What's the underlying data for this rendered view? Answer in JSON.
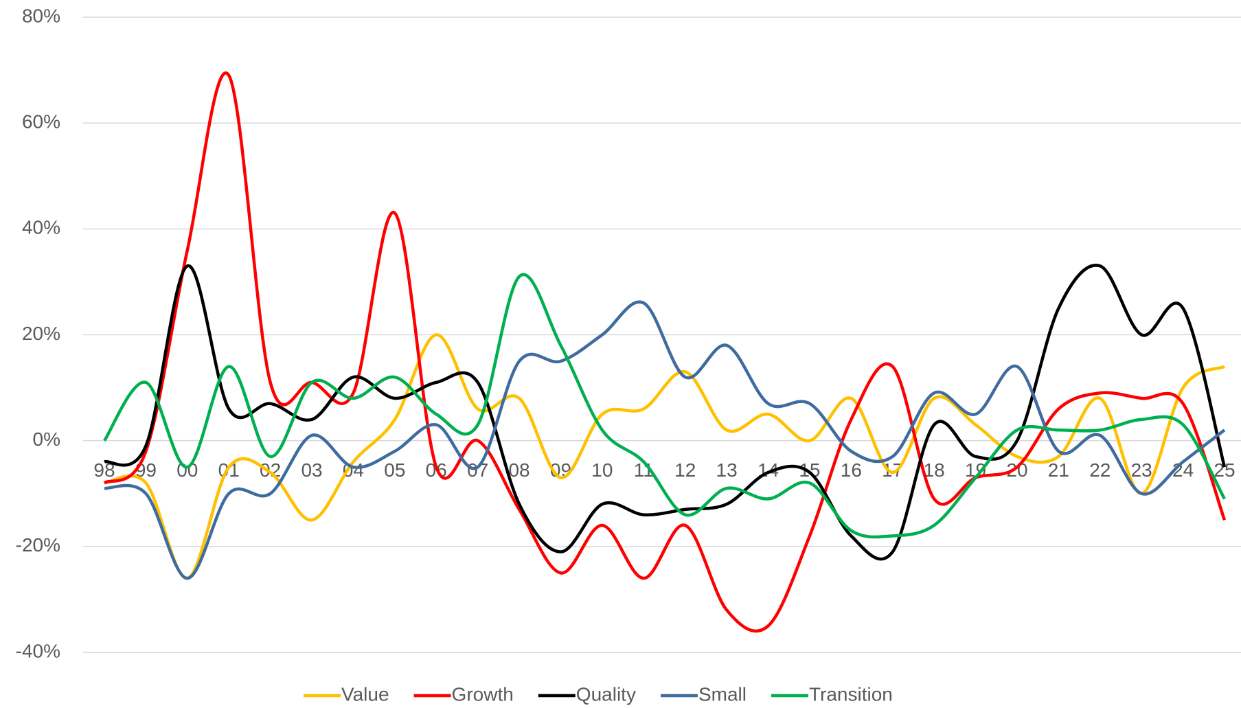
{
  "chart_data": {
    "type": "line",
    "categories": [
      "98",
      "99",
      "00",
      "01",
      "02",
      "03",
      "04",
      "05",
      "06",
      "07",
      "08",
      "09",
      "10",
      "11",
      "12",
      "13",
      "14",
      "15",
      "16",
      "17",
      "18",
      "19",
      "20",
      "21",
      "22",
      "23",
      "24",
      "25"
    ],
    "series": [
      {
        "name": "Value",
        "color": "#ffc000",
        "values": [
          -8,
          -8,
          -26,
          -5,
          -6,
          -15,
          -4,
          4,
          20,
          6,
          8,
          -7,
          5,
          6,
          13,
          2,
          5,
          0,
          8,
          -6,
          8,
          3,
          -3,
          -3,
          8,
          -10,
          10,
          14
        ]
      },
      {
        "name": "Growth",
        "color": "#ff0000",
        "values": [
          -8,
          -2,
          36,
          69,
          11,
          11,
          9,
          43,
          -5,
          0,
          -13,
          -25,
          -16,
          -26,
          -16,
          -32,
          -35,
          -18,
          4,
          14,
          -11,
          -7,
          -5,
          6,
          9,
          8,
          7,
          -15
        ]
      },
      {
        "name": "Quality",
        "color": "#000000",
        "values": [
          -4,
          -1,
          33,
          6,
          7,
          4,
          12,
          8,
          11,
          11,
          -12,
          -21,
          -12,
          -14,
          -13,
          -12,
          -6,
          -6,
          -18,
          -21,
          3,
          -3,
          0,
          25,
          33,
          20,
          25,
          -5
        ]
      },
      {
        "name": "Small",
        "color": "#3f6c9e",
        "values": [
          -9,
          -10,
          -26,
          -10,
          -10,
          1,
          -5,
          -2,
          3,
          -5,
          15,
          15,
          20,
          26,
          12,
          18,
          7,
          7,
          -2,
          -3,
          9,
          5,
          14,
          -2,
          1,
          -10,
          -4,
          2
        ]
      },
      {
        "name": "Transition",
        "color": "#00b050",
        "values": [
          0,
          11,
          -5,
          14,
          -3,
          11,
          8,
          12,
          5,
          3,
          31,
          18,
          2,
          -4,
          -14,
          -9,
          -11,
          -8,
          -17,
          -18,
          -16,
          -7,
          2,
          2,
          2,
          4,
          3,
          -11
        ]
      }
    ],
    "ylim": [
      -40,
      80
    ],
    "yticks": [
      {
        "value": -40,
        "label": "-40%"
      },
      {
        "value": -20,
        "label": "-20%"
      },
      {
        "value": 0,
        "label": "0%"
      },
      {
        "value": 20,
        "label": "20%"
      },
      {
        "value": 40,
        "label": "40%"
      },
      {
        "value": 60,
        "label": "60%"
      },
      {
        "value": 80,
        "label": "80%"
      }
    ],
    "grid": true,
    "legend": "bottom"
  }
}
